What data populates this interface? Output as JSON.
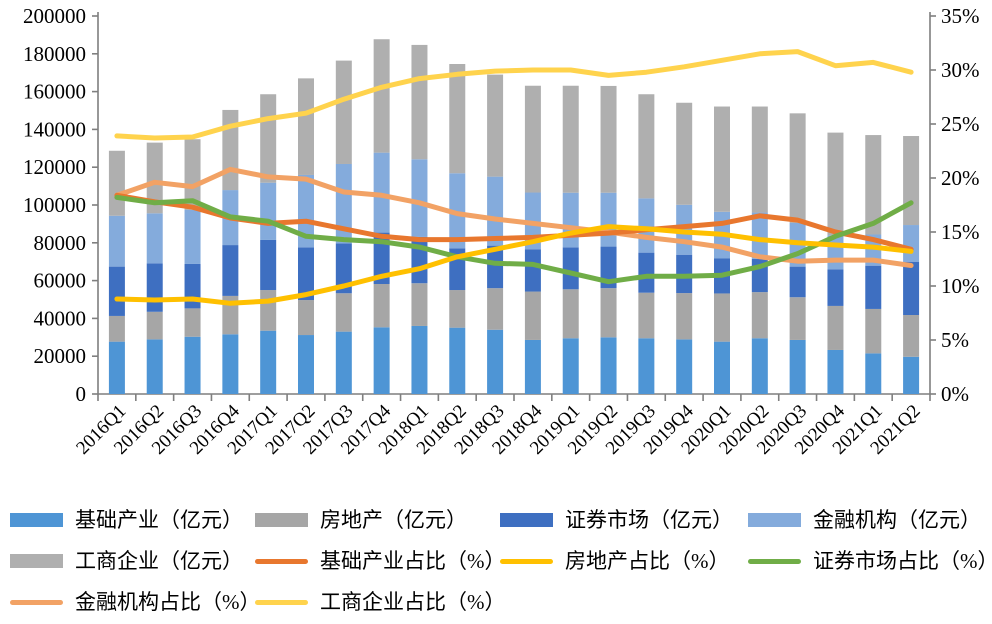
{
  "chart_data": {
    "type": "combo-stacked-bar-line",
    "title": "",
    "categories": [
      "2016Q1",
      "2016Q2",
      "2016Q3",
      "2016Q4",
      "2017Q1",
      "2017Q2",
      "2017Q3",
      "2017Q4",
      "2018Q1",
      "2018Q2",
      "2018Q3",
      "2018Q4",
      "2019Q1",
      "2019Q2",
      "2019Q3",
      "2019Q4",
      "2020Q1",
      "2020Q2",
      "2020Q3",
      "2020Q4",
      "2021Q1",
      "2021Q2"
    ],
    "left_axis": {
      "min": 0,
      "max": 200000,
      "step": 20000,
      "tick_labels": [
        "0",
        "20000",
        "40000",
        "60000",
        "80000",
        "100000",
        "120000",
        "140000",
        "160000",
        "180000",
        "200000"
      ]
    },
    "right_axis": {
      "min": 0,
      "max": 35,
      "step": 5,
      "tick_labels": [
        "0%",
        "5%",
        "10%",
        "15%",
        "20%",
        "25%",
        "30%",
        "35%"
      ]
    },
    "bar_series": [
      {
        "name": "基础产业（亿元）",
        "color": "#4E95D5",
        "values": [
          27700,
          28900,
          30300,
          31600,
          33500,
          31200,
          33000,
          35300,
          36000,
          35100,
          34000,
          28600,
          29500,
          30000,
          29500,
          28900,
          27700,
          29500,
          28600,
          23300,
          21500,
          19700
        ]
      },
      {
        "name": "房地产（亿元）",
        "color": "#A6A6A6",
        "values": [
          13600,
          14600,
          15000,
          20300,
          21500,
          18500,
          20300,
          22900,
          22600,
          19900,
          22000,
          25600,
          25900,
          26000,
          24100,
          24500,
          25500,
          24400,
          22600,
          23300,
          23500,
          22100
        ]
      },
      {
        "name": "证券市场（亿元）",
        "color": "#3E6FC1",
        "values": [
          26100,
          25600,
          23500,
          26900,
          26500,
          27900,
          26400,
          27200,
          24600,
          22100,
          22500,
          22400,
          22200,
          22000,
          21200,
          20300,
          18500,
          17600,
          16200,
          19400,
          22900,
          28200
        ]
      },
      {
        "name": "金融机构（亿元）",
        "color": "#84ABDC",
        "values": [
          26900,
          26500,
          28600,
          29100,
          30300,
          38300,
          42000,
          42300,
          41000,
          39700,
          36500,
          30000,
          28900,
          28500,
          28700,
          26400,
          24700,
          24500,
          23100,
          18000,
          16500,
          19400
        ]
      },
      {
        "name": "工商企业（亿元）",
        "color": "#AFAFAF",
        "values": [
          34400,
          37400,
          37400,
          42400,
          46800,
          51100,
          54700,
          60000,
          60500,
          57800,
          54000,
          56500,
          56600,
          56500,
          55100,
          54000,
          55700,
          56100,
          58000,
          54300,
          52600,
          47100
        ]
      }
    ],
    "line_series": [
      {
        "name": "基础产业占比（%）",
        "color": "#E8772E",
        "values": [
          18.4,
          17.8,
          17.3,
          16.3,
          15.8,
          16.0,
          15.3,
          14.6,
          14.3,
          14.3,
          14.4,
          14.5,
          14.7,
          14.9,
          15.2,
          15.5,
          15.8,
          16.5,
          16.1,
          15.0,
          14.3,
          13.4
        ]
      },
      {
        "name": "房地产占比（%）",
        "color": "#FFC000",
        "values": [
          8.8,
          8.7,
          8.8,
          8.4,
          8.6,
          9.2,
          10.0,
          10.9,
          11.6,
          12.7,
          13.4,
          14.1,
          14.9,
          15.5,
          15.3,
          15.0,
          14.8,
          14.3,
          14.0,
          13.8,
          13.6,
          13.2
        ]
      },
      {
        "name": "证券市场占比（%）",
        "color": "#70AD47",
        "values": [
          18.2,
          17.7,
          17.9,
          16.4,
          16.0,
          14.6,
          14.3,
          14.1,
          13.6,
          12.7,
          12.1,
          12.0,
          11.2,
          10.4,
          10.9,
          10.9,
          11.0,
          11.8,
          13.0,
          14.6,
          15.8,
          17.7
        ]
      },
      {
        "name": "金融机构占比（%）",
        "color": "#F2A265",
        "values": [
          18.4,
          19.6,
          19.2,
          20.8,
          20.1,
          19.9,
          18.7,
          18.4,
          17.7,
          16.7,
          16.2,
          15.8,
          15.4,
          15.0,
          14.5,
          14.1,
          13.6,
          12.7,
          12.3,
          12.4,
          12.4,
          11.9
        ]
      },
      {
        "name": "工商企业占比（%）",
        "color": "#FFD34D",
        "values": [
          23.9,
          23.7,
          23.8,
          24.8,
          25.5,
          26.0,
          27.3,
          28.4,
          29.2,
          29.6,
          29.9,
          30.0,
          30.0,
          29.5,
          29.8,
          30.3,
          30.9,
          31.5,
          31.7,
          30.4,
          30.7,
          29.8
        ]
      }
    ],
    "line_draw_order": [
      3,
      0,
      2,
      1,
      4
    ],
    "legend_position": "bottom",
    "grid": false
  },
  "legend": {
    "items": [
      {
        "label": "基础产业（亿元）",
        "type": "bar",
        "color": "#4E95D5"
      },
      {
        "label": "房地产（亿元）",
        "type": "bar",
        "color": "#A6A6A6"
      },
      {
        "label": "证券市场（亿元）",
        "type": "bar",
        "color": "#3E6FC1"
      },
      {
        "label": "金融机构（亿元）",
        "type": "bar",
        "color": "#84ABDC"
      },
      {
        "label": "工商企业（亿元）",
        "type": "bar",
        "color": "#AFAFAF"
      },
      {
        "label": "基础产业占比（%）",
        "type": "line",
        "color": "#E8772E"
      },
      {
        "label": "房地产占比（%）",
        "type": "line",
        "color": "#FFC000"
      },
      {
        "label": "证券市场占比（%）",
        "type": "line",
        "color": "#70AD47"
      },
      {
        "label": "金融机构占比（%）",
        "type": "line",
        "color": "#F2A265"
      },
      {
        "label": "工商企业占比（%）",
        "type": "line",
        "color": "#FFD34D"
      }
    ]
  },
  "colors": {
    "axis": "#7f7f7f",
    "background": "#ffffff"
  }
}
